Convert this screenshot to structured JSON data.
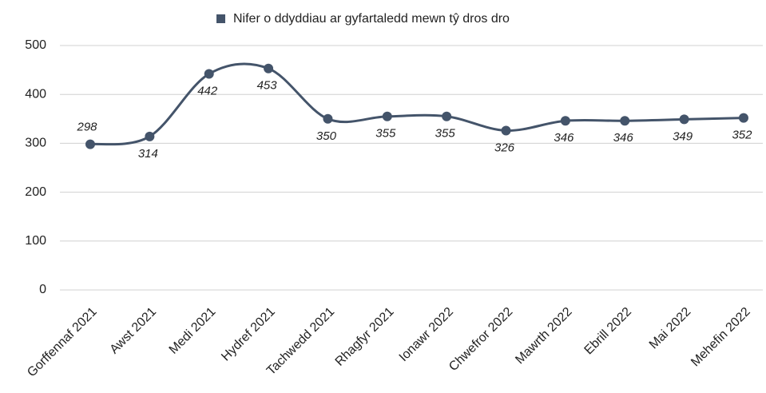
{
  "chart_data": {
    "type": "line",
    "categories": [
      "Gorffennaf 2021",
      "Awst 2021",
      "Medi 2021",
      "Hydref 2021",
      "Tachwedd 2021",
      "Rhagfyr 2021",
      "Ionawr 2022",
      "Chwefror 2022",
      "Mawrth 2022",
      "Ebrill 2022",
      "Mai 2022",
      "Mehefin 2022"
    ],
    "series": [
      {
        "name": "Nifer o ddyddiau ar gyfartaledd mewn tŷ dros dro",
        "color": "#44546a",
        "values": [
          298,
          314,
          442,
          453,
          350,
          355,
          355,
          326,
          346,
          346,
          349,
          352
        ]
      }
    ],
    "ylim": [
      0,
      500
    ],
    "yticks": [
      0,
      100,
      200,
      300,
      400,
      500
    ],
    "grid": true,
    "smooth": true,
    "legend": "top"
  }
}
